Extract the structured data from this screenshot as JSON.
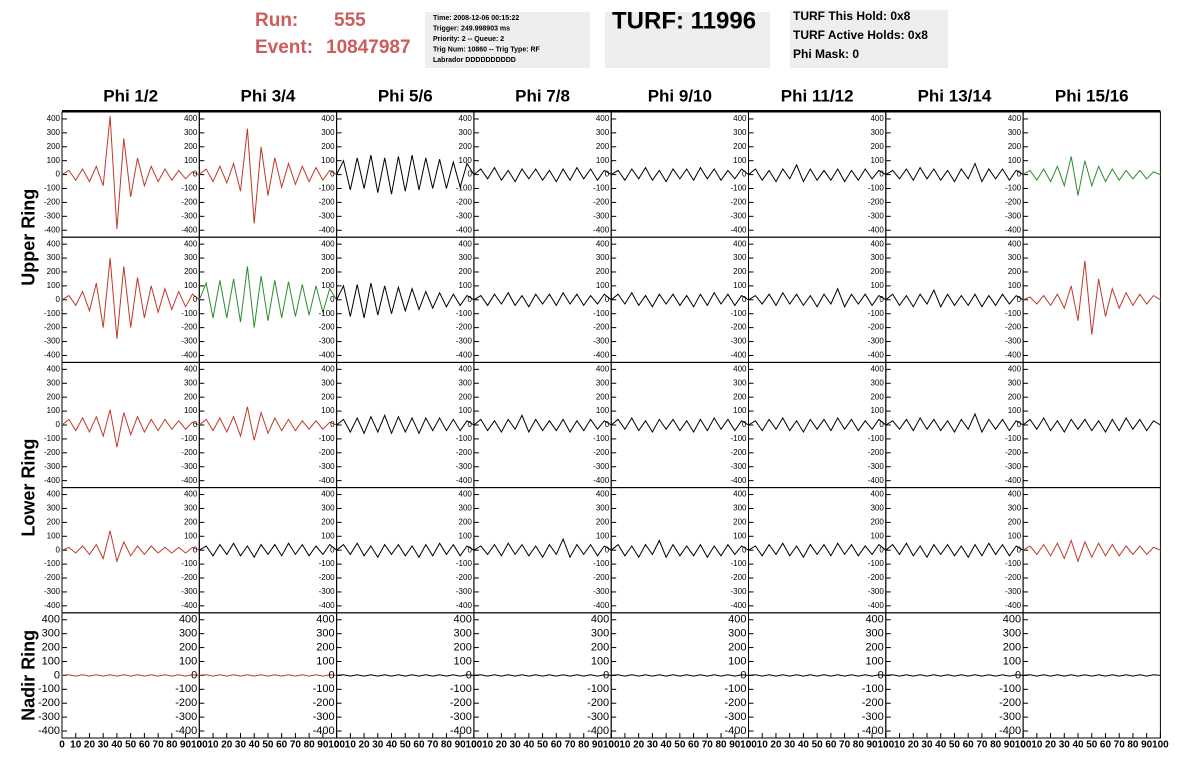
{
  "header": {
    "run_label": "Run:",
    "run": "555",
    "event_label": "Event:",
    "event": "10847987",
    "info": [
      "Time: 2008-12-06 00:15:22",
      "Trigger: 249.998903 ms",
      "Priority: 2 -- Queue: 2",
      "Trig Num: 10860 -- Trig Type: RF",
      "Labrador DDDDDDDDDD"
    ],
    "turf": "TURF: 11996",
    "turf_info": [
      "TURF This Hold: 0x8",
      "TURF Active Holds: 0x8",
      "Phi Mask: 0"
    ]
  },
  "columns": [
    "Phi 1/2",
    "Phi 3/4",
    "Phi 5/6",
    "Phi 7/8",
    "Phi 9/10",
    "Phi 11/12",
    "Phi 13/14",
    "Phi 15/16"
  ],
  "rows": [
    "Upper Ring",
    "Lower Ring",
    "Nadir Ring"
  ],
  "chart_data": {
    "type": "line",
    "xlim": [
      0,
      100
    ],
    "ylim": [
      -450,
      450
    ],
    "xticks": [
      0,
      10,
      20,
      30,
      40,
      50,
      60,
      70,
      80,
      90,
      100
    ],
    "yticks": [
      -400,
      -300,
      -200,
      -100,
      0,
      100,
      200,
      300,
      400
    ],
    "x": [
      0,
      5,
      10,
      15,
      20,
      25,
      30,
      35,
      40,
      45,
      50,
      55,
      60,
      65,
      70,
      75,
      80,
      85,
      90,
      95,
      100
    ],
    "panels": [
      [
        {
          "color": "#c0392b",
          "values": [
            0,
            30,
            -40,
            40,
            -50,
            60,
            -80,
            420,
            -390,
            260,
            -160,
            120,
            -80,
            60,
            -50,
            40,
            -40,
            30,
            -30,
            20,
            0
          ]
        },
        {
          "color": "#c0392b",
          "values": [
            0,
            40,
            -50,
            60,
            -60,
            80,
            -120,
            330,
            -350,
            200,
            -150,
            120,
            -90,
            80,
            -70,
            60,
            -50,
            50,
            -40,
            30,
            0
          ]
        },
        {
          "color": "#000000",
          "values": [
            0,
            100,
            -110,
            120,
            -100,
            140,
            -130,
            120,
            -140,
            130,
            -120,
            140,
            -110,
            120,
            -100,
            110,
            -100,
            90,
            -90,
            80,
            0
          ]
        },
        {
          "color": "#000000",
          "values": [
            0,
            40,
            -30,
            50,
            -40,
            30,
            -50,
            40,
            -30,
            40,
            -40,
            30,
            -50,
            40,
            -40,
            50,
            -30,
            40,
            -40,
            30,
            0
          ]
        },
        {
          "color": "#000000",
          "values": [
            0,
            30,
            -40,
            40,
            -30,
            50,
            -40,
            30,
            -50,
            40,
            -30,
            40,
            -40,
            50,
            -30,
            40,
            -40,
            30,
            -30,
            40,
            0
          ]
        },
        {
          "color": "#000000",
          "values": [
            0,
            40,
            -40,
            30,
            -50,
            40,
            -30,
            70,
            -50,
            40,
            -40,
            30,
            -40,
            40,
            -50,
            30,
            -40,
            40,
            -30,
            30,
            0
          ]
        },
        {
          "color": "#000000",
          "values": [
            0,
            30,
            -30,
            40,
            -40,
            50,
            -30,
            40,
            -40,
            30,
            -50,
            40,
            -30,
            80,
            -50,
            40,
            -30,
            40,
            -40,
            30,
            0
          ]
        },
        {
          "color": "#2e8b2e",
          "values": [
            0,
            30,
            -40,
            40,
            -50,
            60,
            -80,
            130,
            -150,
            100,
            -80,
            60,
            -50,
            40,
            -40,
            30,
            -30,
            30,
            -30,
            20,
            0
          ]
        }
      ],
      [
        {
          "color": "#c0392b",
          "values": [
            0,
            30,
            -40,
            60,
            -80,
            120,
            -200,
            300,
            -280,
            240,
            -200,
            160,
            -130,
            100,
            -90,
            80,
            -70,
            60,
            -50,
            40,
            0
          ]
        },
        {
          "color": "#2e8b2e",
          "values": [
            0,
            120,
            -130,
            140,
            -130,
            150,
            -160,
            240,
            -200,
            170,
            -150,
            140,
            -130,
            130,
            -120,
            110,
            -110,
            100,
            -90,
            80,
            0
          ]
        },
        {
          "color": "#000000",
          "values": [
            0,
            100,
            -120,
            110,
            -130,
            120,
            -110,
            100,
            -100,
            90,
            -80,
            80,
            -70,
            60,
            -60,
            50,
            -50,
            40,
            -40,
            30,
            0
          ]
        },
        {
          "color": "#000000",
          "values": [
            0,
            30,
            -40,
            40,
            -30,
            50,
            -40,
            30,
            -50,
            40,
            -30,
            40,
            -40,
            50,
            -30,
            40,
            -40,
            30,
            -30,
            40,
            0
          ]
        },
        {
          "color": "#000000",
          "values": [
            0,
            40,
            -30,
            50,
            -40,
            30,
            -50,
            40,
            -30,
            40,
            -40,
            30,
            -50,
            40,
            -40,
            50,
            -30,
            40,
            -40,
            30,
            0
          ]
        },
        {
          "color": "#000000",
          "values": [
            0,
            30,
            -30,
            40,
            -40,
            50,
            -30,
            40,
            -40,
            30,
            -50,
            40,
            -30,
            80,
            -50,
            40,
            -30,
            40,
            -40,
            30,
            0
          ]
        },
        {
          "color": "#000000",
          "values": [
            0,
            40,
            -40,
            30,
            -50,
            40,
            -30,
            70,
            -50,
            40,
            -40,
            30,
            -40,
            40,
            -50,
            30,
            -40,
            40,
            -30,
            30,
            0
          ]
        },
        {
          "color": "#c0392b",
          "values": [
            0,
            20,
            -30,
            30,
            -40,
            40,
            -60,
            100,
            -150,
            280,
            -250,
            150,
            -120,
            80,
            -60,
            50,
            -40,
            40,
            -30,
            30,
            0
          ]
        }
      ],
      [
        {
          "color": "#c0392b",
          "values": [
            0,
            40,
            -40,
            50,
            -50,
            60,
            -80,
            110,
            -160,
            90,
            -70,
            60,
            -50,
            40,
            -40,
            40,
            -30,
            30,
            -30,
            20,
            0
          ]
        },
        {
          "color": "#c0392b",
          "values": [
            0,
            40,
            -40,
            50,
            -50,
            60,
            -80,
            130,
            -110,
            90,
            -60,
            50,
            -40,
            40,
            -40,
            30,
            -30,
            30,
            -30,
            20,
            0
          ]
        },
        {
          "color": "#000000",
          "values": [
            0,
            40,
            -50,
            50,
            -60,
            60,
            -50,
            70,
            -60,
            60,
            -50,
            50,
            -60,
            50,
            -40,
            50,
            -40,
            40,
            -40,
            30,
            0
          ]
        },
        {
          "color": "#000000",
          "values": [
            0,
            40,
            -40,
            30,
            -50,
            40,
            -30,
            70,
            -50,
            40,
            -40,
            30,
            -40,
            40,
            -50,
            30,
            -40,
            40,
            -30,
            30,
            0
          ]
        },
        {
          "color": "#000000",
          "values": [
            0,
            40,
            -30,
            50,
            -40,
            30,
            -50,
            40,
            -30,
            40,
            -40,
            30,
            -50,
            40,
            -40,
            50,
            -30,
            40,
            -40,
            30,
            0
          ]
        },
        {
          "color": "#000000",
          "values": [
            0,
            30,
            -40,
            40,
            -30,
            50,
            -40,
            30,
            -50,
            40,
            -30,
            40,
            -40,
            50,
            -30,
            40,
            -40,
            30,
            -30,
            40,
            0
          ]
        },
        {
          "color": "#000000",
          "values": [
            0,
            30,
            -30,
            40,
            -40,
            50,
            -30,
            40,
            -40,
            30,
            -50,
            40,
            -30,
            80,
            -50,
            40,
            -30,
            40,
            -40,
            30,
            0
          ]
        },
        {
          "color": "#000000",
          "values": [
            0,
            40,
            -30,
            50,
            -40,
            30,
            -50,
            40,
            -30,
            40,
            -40,
            30,
            -50,
            40,
            -40,
            50,
            -30,
            40,
            -40,
            30,
            0
          ]
        }
      ],
      [
        {
          "color": "#c0392b",
          "values": [
            0,
            20,
            -20,
            30,
            -30,
            40,
            -60,
            140,
            -80,
            60,
            -40,
            30,
            -30,
            30,
            -20,
            20,
            -20,
            20,
            -20,
            20,
            0
          ]
        },
        {
          "color": "#000000",
          "values": [
            0,
            30,
            -40,
            40,
            -30,
            50,
            -40,
            30,
            -50,
            40,
            -30,
            40,
            -40,
            50,
            -30,
            40,
            -40,
            30,
            -30,
            40,
            0
          ]
        },
        {
          "color": "#000000",
          "values": [
            0,
            40,
            -30,
            50,
            -40,
            30,
            -50,
            40,
            -30,
            40,
            -40,
            30,
            -50,
            40,
            -40,
            50,
            -30,
            40,
            -40,
            30,
            0
          ]
        },
        {
          "color": "#000000",
          "values": [
            0,
            30,
            -30,
            40,
            -40,
            50,
            -30,
            40,
            -40,
            30,
            -50,
            40,
            -30,
            80,
            -50,
            40,
            -30,
            40,
            -40,
            30,
            0
          ]
        },
        {
          "color": "#000000",
          "values": [
            0,
            40,
            -40,
            30,
            -50,
            40,
            -30,
            70,
            -50,
            40,
            -40,
            30,
            -40,
            40,
            -50,
            30,
            -40,
            40,
            -30,
            30,
            0
          ]
        },
        {
          "color": "#000000",
          "values": [
            0,
            30,
            -40,
            40,
            -30,
            50,
            -40,
            30,
            -50,
            40,
            -30,
            40,
            -40,
            50,
            -30,
            40,
            -40,
            30,
            -30,
            40,
            0
          ]
        },
        {
          "color": "#000000",
          "values": [
            0,
            40,
            -30,
            50,
            -40,
            30,
            -50,
            40,
            -30,
            40,
            -40,
            30,
            -50,
            40,
            -40,
            50,
            -30,
            40,
            -40,
            30,
            0
          ]
        },
        {
          "color": "#c0392b",
          "values": [
            0,
            30,
            -30,
            40,
            -40,
            50,
            -60,
            70,
            -80,
            60,
            -50,
            50,
            -40,
            40,
            -40,
            30,
            -30,
            30,
            -30,
            20,
            0
          ]
        }
      ],
      [
        {
          "color": "#c0392b",
          "values": [
            0,
            5,
            -5,
            5,
            -5,
            5,
            -5,
            5,
            -5,
            5,
            -5,
            5,
            -5,
            5,
            -5,
            5,
            -5,
            5,
            -5,
            5,
            0
          ]
        },
        {
          "color": "#c0392b",
          "values": [
            0,
            5,
            -5,
            5,
            -5,
            5,
            -5,
            5,
            -5,
            5,
            -5,
            5,
            -5,
            5,
            -5,
            5,
            -5,
            5,
            -5,
            5,
            0
          ]
        },
        {
          "color": "#000000",
          "values": [
            0,
            5,
            -5,
            5,
            -5,
            5,
            -5,
            5,
            -5,
            5,
            -5,
            5,
            -5,
            5,
            -5,
            5,
            -5,
            5,
            -5,
            5,
            0
          ]
        },
        {
          "color": "#000000",
          "values": [
            0,
            5,
            -5,
            5,
            -5,
            5,
            -5,
            5,
            -5,
            5,
            -5,
            5,
            -5,
            5,
            -5,
            5,
            -5,
            5,
            -5,
            5,
            0
          ]
        },
        {
          "color": "#000000",
          "values": [
            0,
            5,
            -5,
            5,
            -5,
            5,
            -5,
            5,
            -5,
            5,
            -5,
            5,
            -5,
            5,
            -5,
            5,
            -5,
            5,
            -5,
            5,
            0
          ]
        },
        {
          "color": "#000000",
          "values": [
            0,
            5,
            -5,
            5,
            -5,
            5,
            -5,
            5,
            -5,
            5,
            -5,
            5,
            -5,
            5,
            -5,
            5,
            -5,
            5,
            -5,
            5,
            0
          ]
        },
        {
          "color": "#000000",
          "values": [
            0,
            5,
            -5,
            5,
            -5,
            5,
            -5,
            5,
            -5,
            5,
            -5,
            5,
            -5,
            5,
            -5,
            5,
            -5,
            5,
            -5,
            5,
            0
          ]
        },
        {
          "color": "#000000",
          "values": [
            0,
            5,
            -5,
            5,
            -5,
            5,
            -5,
            5,
            -5,
            5,
            -5,
            5,
            -5,
            5,
            -5,
            5,
            -5,
            5,
            -5,
            5,
            0
          ]
        }
      ]
    ]
  }
}
